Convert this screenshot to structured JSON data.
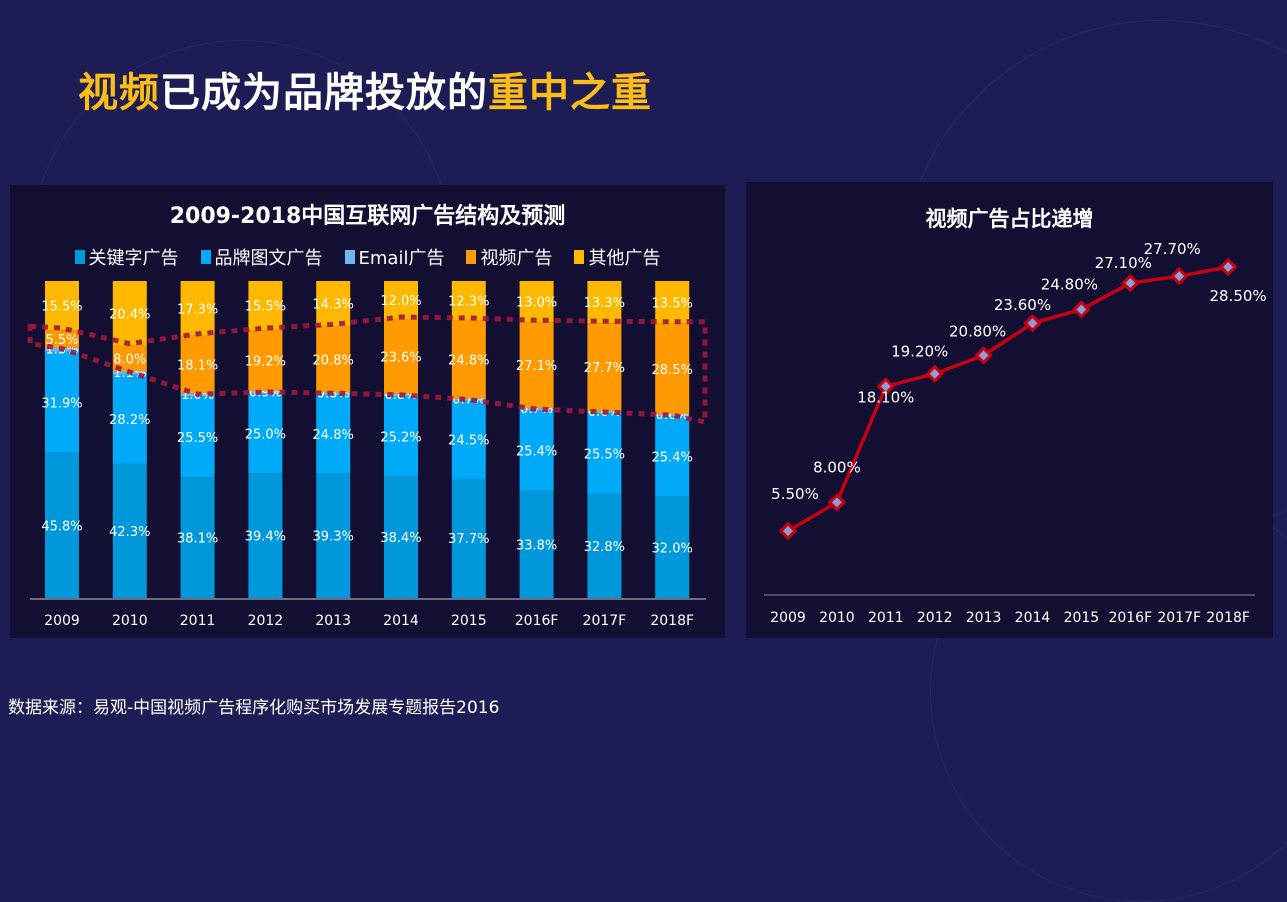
{
  "headline": {
    "part1": "视频",
    "part2": "已成为品牌投放的",
    "part3": "重中之重"
  },
  "colors": {
    "keyword": "#0098db",
    "brand": "#00aaf8",
    "email": "#6cb8f0",
    "video": "#ff9a00",
    "other": "#ffb800",
    "line": "#c8000f",
    "marker_fill": "#8aa0d8",
    "highlight_dots": "#a0173d",
    "headline_accent": "#fbbd16"
  },
  "chart_data": [
    {
      "type": "bar",
      "stacked": true,
      "title": "2009-2018中国互联网广告结构及预测",
      "categories": [
        "2009",
        "2010",
        "2011",
        "2012",
        "2013",
        "2014",
        "2015",
        "2016F",
        "2017F",
        "2018F"
      ],
      "legend_position": "top",
      "ylim": [
        0,
        100
      ],
      "grid": false,
      "series": [
        {
          "name": "关键字广告",
          "key": "keyword",
          "values": [
            45.8,
            42.3,
            38.1,
            39.4,
            39.3,
            38.4,
            37.7,
            33.8,
            32.8,
            32.0
          ]
        },
        {
          "name": "品牌图文广告",
          "key": "brand",
          "values": [
            31.9,
            28.2,
            25.5,
            25.0,
            24.8,
            25.2,
            24.5,
            25.4,
            25.5,
            25.4
          ]
        },
        {
          "name": "Email广告",
          "key": "email",
          "values": [
            1.3,
            1.1,
            1.0,
            0.9,
            0.8,
            0.8,
            0.7,
            0.7,
            0.6,
            0.6
          ]
        },
        {
          "name": "视频广告",
          "key": "video",
          "values": [
            5.5,
            8.0,
            18.1,
            19.2,
            20.8,
            23.6,
            24.8,
            27.1,
            27.7,
            28.5
          ]
        },
        {
          "name": "其他广告",
          "key": "other",
          "values": [
            15.5,
            20.4,
            17.3,
            15.5,
            14.3,
            12.0,
            12.3,
            13.0,
            13.3,
            13.5
          ]
        }
      ],
      "labels": [
        [
          "45.8%",
          "31.9%",
          "1.3%",
          "5.5%",
          "15.5%"
        ],
        [
          "42.3%",
          "28.2%",
          "1.1%",
          "8.0%",
          "20.4%"
        ],
        [
          "38.1%",
          "25.5%",
          "1.0%",
          "18.1%",
          "17.3%"
        ],
        [
          "39.4%",
          "25.0%",
          "0.9%",
          "19.2%",
          "15.5%"
        ],
        [
          "39.3%",
          "24.8%",
          "0.8%",
          "20.8%",
          "14.3%"
        ],
        [
          "38.4%",
          "25.2%",
          "0.8%",
          "23.6%",
          "12.0%"
        ],
        [
          "37.7%",
          "24.5%",
          "0.7%",
          "24.8%",
          "12.3%"
        ],
        [
          "33.8%",
          "25.4%",
          "0.7%",
          "27.1%",
          "13.0%"
        ],
        [
          "32.8%",
          "25.5%",
          "0.6%",
          "27.7%",
          "13.3%"
        ],
        [
          "32.0%",
          "25.4%",
          "0.6%",
          "28.5%",
          "13.5%"
        ]
      ],
      "annotation": "dotted highlight outlining the 视频广告 segment across all years"
    },
    {
      "type": "line",
      "title": "视频广告占比递增",
      "x": [
        "2009",
        "2010",
        "2011",
        "2012",
        "2013",
        "2014",
        "2015",
        "2016F",
        "2017F",
        "2018F"
      ],
      "series": [
        {
          "name": "视频广告占比",
          "values": [
            5.5,
            8.0,
            18.1,
            19.2,
            20.8,
            23.6,
            24.8,
            27.1,
            27.7,
            28.5
          ]
        }
      ],
      "data_labels": [
        "5.50%",
        "8.00%",
        "18.10%",
        "19.20%",
        "20.80%",
        "23.60%",
        "24.80%",
        "27.10%",
        "27.70%",
        "28.50%"
      ],
      "ylim": [
        0,
        30
      ],
      "grid": false,
      "marker": "diamond"
    }
  ],
  "source": "数据来源：易观-中国视频广告程序化购买市场发展专题报告2016"
}
